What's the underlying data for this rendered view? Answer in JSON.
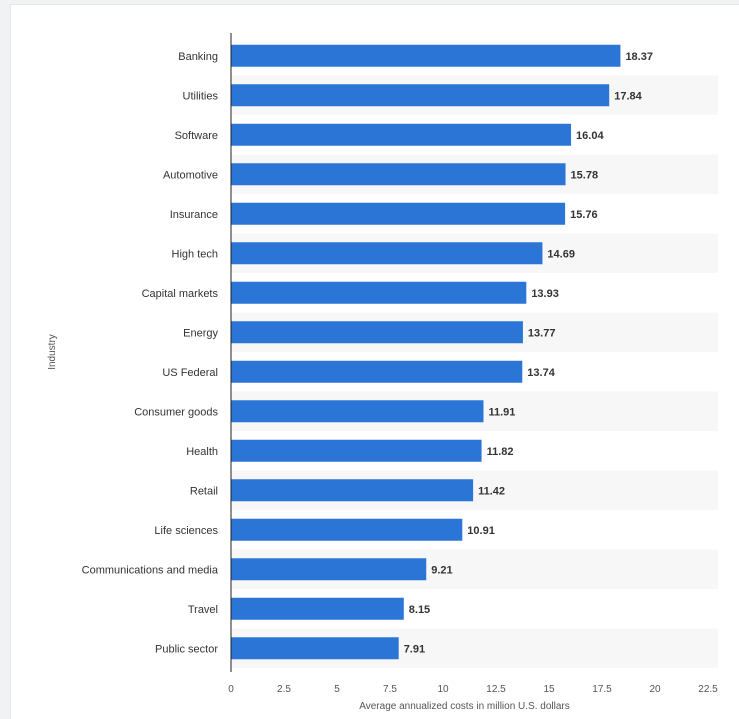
{
  "chart_data": {
    "type": "bar",
    "orientation": "horizontal",
    "categories": [
      "Banking",
      "Utilities",
      "Software",
      "Automotive",
      "Insurance",
      "High tech",
      "Capital markets",
      "Energy",
      "US Federal",
      "Consumer goods",
      "Health",
      "Retail",
      "Life sciences",
      "Communications and media",
      "Travel",
      "Public sector"
    ],
    "values": [
      18.37,
      17.84,
      16.04,
      15.78,
      15.76,
      14.69,
      13.93,
      13.77,
      13.74,
      11.91,
      11.82,
      11.42,
      10.91,
      9.21,
      8.15,
      7.91
    ],
    "value_labels": [
      "18.37",
      "17.84",
      "16.04",
      "15.78",
      "15.76",
      "14.69",
      "13.93",
      "13.77",
      "13.74",
      "11.91",
      "11.82",
      "11.42",
      "10.91",
      "9.21",
      "8.15",
      "7.91"
    ],
    "xlabel": "Average annualized costs in million U.S. dollars",
    "ylabel": "Industry",
    "xlim": [
      0,
      22.5
    ],
    "xticks": [
      "0",
      "2.5",
      "5",
      "7.5",
      "10",
      "12.5",
      "15",
      "17.5",
      "20",
      "22.5"
    ],
    "grid": "alternating row bands",
    "colors": {
      "bar": "#2a75d6",
      "band": "#f7f7f7",
      "axis": "#222222",
      "text": "#333333"
    }
  }
}
